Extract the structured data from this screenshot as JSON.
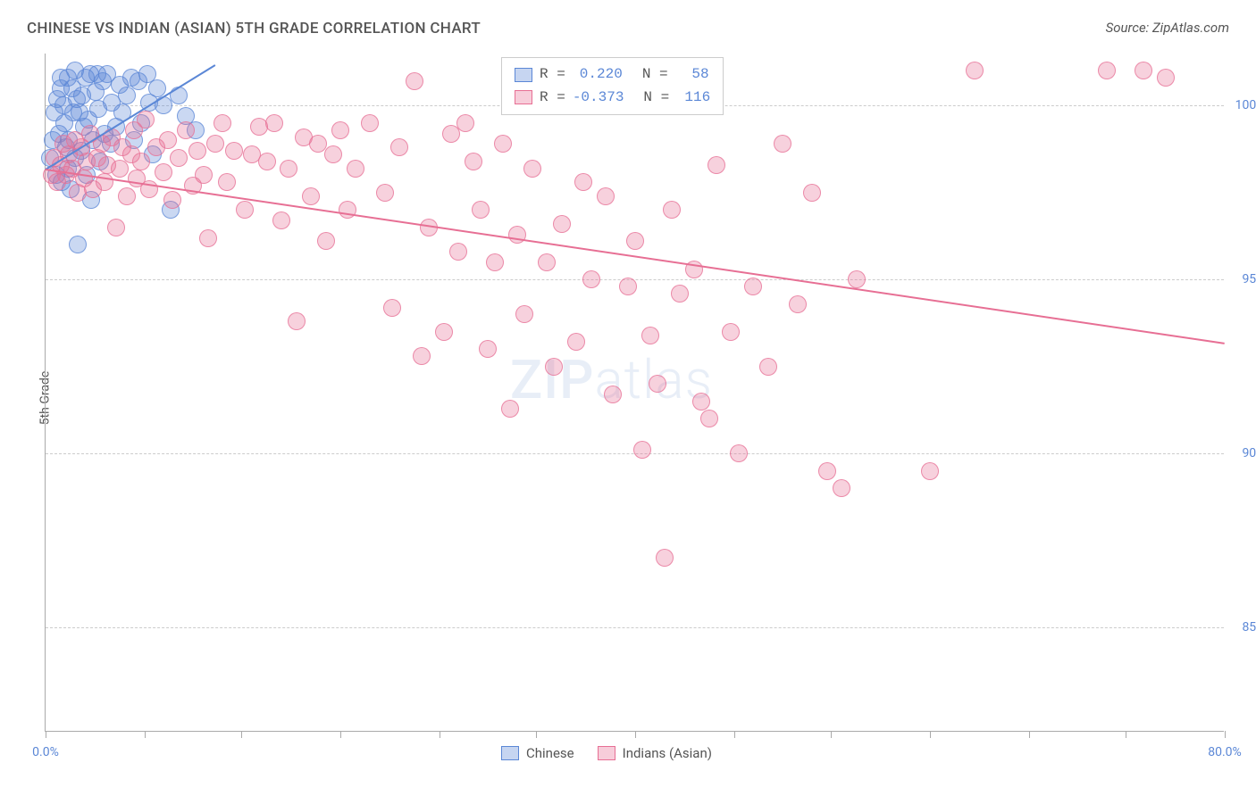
{
  "title": "CHINESE VS INDIAN (ASIAN) 5TH GRADE CORRELATION CHART",
  "source": "Source: ZipAtlas.com",
  "ylabel": "5th Grade",
  "watermark_zip": "ZIP",
  "watermark_atlas": "atlas",
  "chart": {
    "type": "scatter",
    "xlim": [
      0,
      80
    ],
    "ylim": [
      82,
      101.5
    ],
    "xtick_labels": {
      "0": "0.0%",
      "80": "80.0%"
    },
    "xtick_positions": [
      0,
      6.7,
      13.3,
      20,
      26.7,
      33.3,
      40,
      46.7,
      53.3,
      60,
      66.7,
      73.3,
      80
    ],
    "ytick_positions": [
      85,
      90,
      95,
      100
    ],
    "ytick_labels": [
      "85.0%",
      "90.0%",
      "95.0%",
      "100.0%"
    ],
    "background_color": "#ffffff",
    "grid_color": "#cccccc",
    "axis_color": "#aaaaaa",
    "tick_label_color": "#5b87d6",
    "marker_radius": 10,
    "marker_opacity": 0.32,
    "marker_stroke_opacity": 0.75,
    "marker_stroke_width": 1.5,
    "trendline_width": 2
  },
  "series": [
    {
      "name": "Chinese",
      "label": "Chinese",
      "color": "#5b87d6",
      "R": "0.220",
      "N": "58",
      "trend": {
        "x1": 0,
        "y1": 98.2,
        "x2": 11.5,
        "y2": 101.2
      },
      "points": [
        [
          0.3,
          98.5
        ],
        [
          0.5,
          99.0
        ],
        [
          0.6,
          99.8
        ],
        [
          0.7,
          98.0
        ],
        [
          0.8,
          100.2
        ],
        [
          0.9,
          99.2
        ],
        [
          1.0,
          100.5
        ],
        [
          1.0,
          100.8
        ],
        [
          1.1,
          97.8
        ],
        [
          1.2,
          100.0
        ],
        [
          1.3,
          99.5
        ],
        [
          1.4,
          98.8
        ],
        [
          1.5,
          98.2
        ],
        [
          1.5,
          100.8
        ],
        [
          1.6,
          99.0
        ],
        [
          1.7,
          97.6
        ],
        [
          1.8,
          100.5
        ],
        [
          1.9,
          99.8
        ],
        [
          2.0,
          98.5
        ],
        [
          2.0,
          101.0
        ],
        [
          2.1,
          100.2
        ],
        [
          2.2,
          96.0
        ],
        [
          2.3,
          99.8
        ],
        [
          2.4,
          98.7
        ],
        [
          2.5,
          100.3
        ],
        [
          2.6,
          99.4
        ],
        [
          2.7,
          100.8
        ],
        [
          2.8,
          98.0
        ],
        [
          2.9,
          99.6
        ],
        [
          3.0,
          100.9
        ],
        [
          3.1,
          97.3
        ],
        [
          3.2,
          99.0
        ],
        [
          3.4,
          100.4
        ],
        [
          3.5,
          100.9
        ],
        [
          3.6,
          99.9
        ],
        [
          3.7,
          98.4
        ],
        [
          3.9,
          100.7
        ],
        [
          4.0,
          99.2
        ],
        [
          4.2,
          100.9
        ],
        [
          4.4,
          98.9
        ],
        [
          4.5,
          100.1
        ],
        [
          4.8,
          99.4
        ],
        [
          5.0,
          100.6
        ],
        [
          5.2,
          99.8
        ],
        [
          5.5,
          100.3
        ],
        [
          5.8,
          100.8
        ],
        [
          6.0,
          99.0
        ],
        [
          6.3,
          100.7
        ],
        [
          6.5,
          99.5
        ],
        [
          6.9,
          100.9
        ],
        [
          7.0,
          100.1
        ],
        [
          7.3,
          98.6
        ],
        [
          7.6,
          100.5
        ],
        [
          8.0,
          100.0
        ],
        [
          8.5,
          97.0
        ],
        [
          9.0,
          100.3
        ],
        [
          9.5,
          99.7
        ],
        [
          10.2,
          99.3
        ]
      ]
    },
    {
      "name": "Indians (Asian)",
      "label": "Indians (Asian)",
      "color": "#e76f94",
      "R": "-0.373",
      "N": "116",
      "trend": {
        "x1": 0,
        "y1": 98.2,
        "x2": 80,
        "y2": 93.2
      },
      "points": [
        [
          0.4,
          98.0
        ],
        [
          0.6,
          98.5
        ],
        [
          0.8,
          97.8
        ],
        [
          1.0,
          98.3
        ],
        [
          1.2,
          98.9
        ],
        [
          1.4,
          98.0
        ],
        [
          1.6,
          98.6
        ],
        [
          1.8,
          98.2
        ],
        [
          2.0,
          99.0
        ],
        [
          2.2,
          97.5
        ],
        [
          2.4,
          98.8
        ],
        [
          2.6,
          97.9
        ],
        [
          2.8,
          98.4
        ],
        [
          3.0,
          99.2
        ],
        [
          3.2,
          97.6
        ],
        [
          3.5,
          98.5
        ],
        [
          3.8,
          98.9
        ],
        [
          4.0,
          97.8
        ],
        [
          4.2,
          98.3
        ],
        [
          4.5,
          99.1
        ],
        [
          4.8,
          96.5
        ],
        [
          5.0,
          98.2
        ],
        [
          5.2,
          98.8
        ],
        [
          5.5,
          97.4
        ],
        [
          5.8,
          98.6
        ],
        [
          6.0,
          99.3
        ],
        [
          6.2,
          97.9
        ],
        [
          6.5,
          98.4
        ],
        [
          6.8,
          99.6
        ],
        [
          7.0,
          97.6
        ],
        [
          7.5,
          98.8
        ],
        [
          8.0,
          98.1
        ],
        [
          8.3,
          99.0
        ],
        [
          8.6,
          97.3
        ],
        [
          9.0,
          98.5
        ],
        [
          9.5,
          99.3
        ],
        [
          10.0,
          97.7
        ],
        [
          10.3,
          98.7
        ],
        [
          10.7,
          98.0
        ],
        [
          11.0,
          96.2
        ],
        [
          11.5,
          98.9
        ],
        [
          12.0,
          99.5
        ],
        [
          12.3,
          97.8
        ],
        [
          12.8,
          98.7
        ],
        [
          13.5,
          97.0
        ],
        [
          14.0,
          98.6
        ],
        [
          14.5,
          99.4
        ],
        [
          15.0,
          98.4
        ],
        [
          15.5,
          99.5
        ],
        [
          16.0,
          96.7
        ],
        [
          16.5,
          98.2
        ],
        [
          17.0,
          93.8
        ],
        [
          17.5,
          99.1
        ],
        [
          18.0,
          97.4
        ],
        [
          18.5,
          98.9
        ],
        [
          19.0,
          96.1
        ],
        [
          19.5,
          98.6
        ],
        [
          20.0,
          99.3
        ],
        [
          20.5,
          97.0
        ],
        [
          21.0,
          98.2
        ],
        [
          22.0,
          99.5
        ],
        [
          23.0,
          97.5
        ],
        [
          23.5,
          94.2
        ],
        [
          24.0,
          98.8
        ],
        [
          25.0,
          100.7
        ],
        [
          25.5,
          92.8
        ],
        [
          26.0,
          96.5
        ],
        [
          27.0,
          93.5
        ],
        [
          27.5,
          99.2
        ],
        [
          28.0,
          95.8
        ],
        [
          28.5,
          99.5
        ],
        [
          29.0,
          98.4
        ],
        [
          29.5,
          97.0
        ],
        [
          30.0,
          93.0
        ],
        [
          30.5,
          95.5
        ],
        [
          31.0,
          98.9
        ],
        [
          31.5,
          91.3
        ],
        [
          32.0,
          96.3
        ],
        [
          32.5,
          94.0
        ],
        [
          33.0,
          98.2
        ],
        [
          34.0,
          95.5
        ],
        [
          34.5,
          92.5
        ],
        [
          35.0,
          96.6
        ],
        [
          36.0,
          93.2
        ],
        [
          36.5,
          97.8
        ],
        [
          37.0,
          95.0
        ],
        [
          38.0,
          97.4
        ],
        [
          38.5,
          91.7
        ],
        [
          39.5,
          94.8
        ],
        [
          40.0,
          96.1
        ],
        [
          40.5,
          90.1
        ],
        [
          41.0,
          93.4
        ],
        [
          41.5,
          92.0
        ],
        [
          42.0,
          87.0
        ],
        [
          42.5,
          97.0
        ],
        [
          43.0,
          94.6
        ],
        [
          43.5,
          101.0
        ],
        [
          44.0,
          95.3
        ],
        [
          44.5,
          91.5
        ],
        [
          45.0,
          91.0
        ],
        [
          45.5,
          98.3
        ],
        [
          46.5,
          93.5
        ],
        [
          47.0,
          90.0
        ],
        [
          48.0,
          94.8
        ],
        [
          49.0,
          92.5
        ],
        [
          50.0,
          98.9
        ],
        [
          51.0,
          94.3
        ],
        [
          52.0,
          97.5
        ],
        [
          53.0,
          89.5
        ],
        [
          54.0,
          89.0
        ],
        [
          55.0,
          95.0
        ],
        [
          60.0,
          89.5
        ],
        [
          63.0,
          101.0
        ],
        [
          72.0,
          101.0
        ],
        [
          74.5,
          101.0
        ],
        [
          76.0,
          100.8
        ]
      ]
    }
  ],
  "legend_top": {
    "R_prefix": "R =",
    "N_prefix": "N ="
  },
  "legend_bottom": {
    "items": [
      "Chinese",
      "Indians (Asian)"
    ]
  }
}
